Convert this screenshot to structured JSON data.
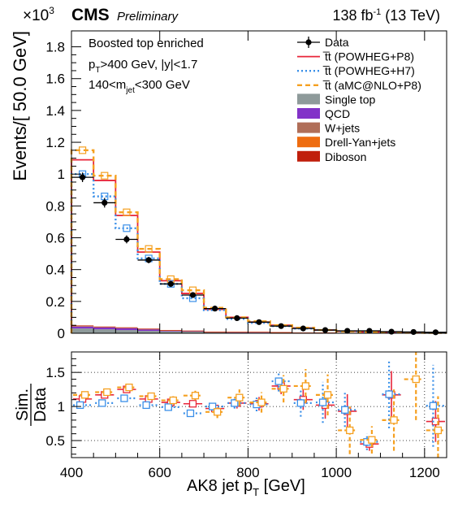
{
  "header": {
    "experiment": "CMS",
    "status": "Preliminary",
    "lumi_prefix": "138 fb",
    "lumi_exp": "-1",
    "lumi_suffix": " (13 TeV)",
    "multiplier_base": "×10",
    "multiplier_exp": "3"
  },
  "annotations": {
    "line1": "Boosted top enriched",
    "line2_a": "p",
    "line2_sub": "T",
    "line2_b": ">400 GeV, |y|<1.7",
    "line3_a": "140<m",
    "line3_sub": "jet",
    "line3_b": "<300 GeV"
  },
  "axes": {
    "x_label_main": "AK8 jet p",
    "x_label_sub": "T",
    "x_label_unit": " [GeV]",
    "y_label_top": "Events/[ 50.0 GeV]",
    "y_label_bottom_num": "Sim.",
    "y_label_bottom_den": "Data"
  },
  "legend": [
    {
      "label": "Data",
      "kind": "data",
      "color": "#000000"
    },
    {
      "label": "t̅t (POWHEG+P8)",
      "kind": "line",
      "color": "#e8263a"
    },
    {
      "label": "t̅t (POWHEG+H7)",
      "kind": "dotted",
      "color": "#3a8fe8"
    },
    {
      "label": "t̅t (aMC@NLO+P8)",
      "kind": "dashed",
      "color": "#f5a020"
    },
    {
      "label": "Single top",
      "kind": "fill",
      "color": "#8e9a9a"
    },
    {
      "label": "QCD",
      "kind": "fill",
      "color": "#8232c8"
    },
    {
      "label": "W+jets",
      "kind": "fill",
      "color": "#b06e58"
    },
    {
      "label": "Drell-Yan+jets",
      "kind": "fill",
      "color": "#ee6c10"
    },
    {
      "label": "Diboson",
      "kind": "fill",
      "color": "#c01f0c"
    }
  ],
  "chart_data": {
    "type": "bar",
    "x_edges": [
      400,
      450,
      500,
      550,
      600,
      650,
      700,
      750,
      800,
      850,
      900,
      950,
      1000,
      1050,
      1100,
      1150,
      1200,
      1250
    ],
    "xlim": [
      400,
      1250
    ],
    "x_ticks": [
      400,
      600,
      800,
      1000,
      1200
    ],
    "main": {
      "ylim": [
        0,
        1.9
      ],
      "y_ticks": [
        0,
        0.2,
        0.4,
        0.6,
        0.8,
        1,
        1.2,
        1.4,
        1.6,
        1.8
      ],
      "y_scale_note": "×10^3",
      "data": {
        "name": "Data",
        "values": [
          0.98,
          0.82,
          0.59,
          0.46,
          0.31,
          0.24,
          0.155,
          0.095,
          0.07,
          0.045,
          0.03,
          0.02,
          0.015,
          0.015,
          0.01,
          0.008,
          0.006
        ],
        "errors": [
          0.03,
          0.03,
          0.025,
          0.02,
          0.018,
          0.015,
          0.012,
          0.01,
          0.008,
          0.007,
          0.006,
          0.005,
          0.004,
          0.004,
          0.003,
          0.003,
          0.003
        ]
      },
      "series": [
        {
          "name": "t̅t (POWHEG+P8)",
          "values": [
            1.09,
            0.96,
            0.74,
            0.51,
            0.33,
            0.25,
            0.15,
            0.1,
            0.07,
            0.05,
            0.033,
            0.02,
            0.013,
            0.008,
            0.005,
            0.004,
            0.003
          ]
        },
        {
          "name": "t̅t (POWHEG+H7)",
          "values": [
            1.0,
            0.86,
            0.66,
            0.47,
            0.31,
            0.22,
            0.145,
            0.09,
            0.065,
            0.045,
            0.03,
            0.02,
            0.012,
            0.008,
            0.005,
            0.004,
            0.003
          ]
        },
        {
          "name": "t̅t (aMC@NLO+P8)",
          "values": [
            1.15,
            0.99,
            0.76,
            0.53,
            0.34,
            0.27,
            0.16,
            0.1,
            0.075,
            0.05,
            0.035,
            0.02,
            0.012,
            0.007,
            0.004,
            0.003,
            0.002
          ]
        }
      ],
      "backgrounds": [
        {
          "name": "Single top",
          "values": [
            0.03,
            0.025,
            0.02,
            0.015,
            0.012,
            0.01,
            0.006,
            0.005,
            0.004,
            0.003,
            0.002,
            0.002,
            0.001,
            0.001,
            0.001,
            0.0005,
            0.0005
          ]
        },
        {
          "name": "QCD",
          "values": [
            0.012,
            0.012,
            0.012,
            0.01,
            0.004,
            0.003,
            0.002,
            0.002,
            0.003,
            0.002,
            0.001,
            0.001,
            0.001,
            0.0005,
            0.0005,
            0.0003,
            0.0003
          ]
        },
        {
          "name": "W+jets",
          "values": [
            0.004,
            0.003,
            0.003,
            0.002,
            0.002,
            0.002,
            0.001,
            0.001,
            0.001,
            0.001,
            0.0005,
            0.0005,
            0.0005,
            0.0003,
            0.0003,
            0.0002,
            0.0002
          ]
        },
        {
          "name": "Drell-Yan+jets",
          "values": [
            0.002,
            0.001,
            0.001,
            0.001,
            0.001,
            0.001,
            0.0005,
            0.0005,
            0.0005,
            0.0005,
            0.0003,
            0.0003,
            0.0002,
            0.0002,
            0.0002,
            0.0001,
            0.0001
          ]
        },
        {
          "name": "Diboson",
          "values": [
            0.001,
            0.001,
            0.001,
            0.001,
            0.0005,
            0.0005,
            0.0003,
            0.0003,
            0.0003,
            0.0002,
            0.0002,
            0.0001,
            0.0001,
            0.0001,
            0.0001,
            0.0001,
            0.0001
          ]
        }
      ]
    },
    "ratio": {
      "ylim": [
        0.25,
        1.8
      ],
      "y_ticks": [
        0.5,
        1,
        1.5
      ],
      "gridlines": [
        0.5,
        1,
        1.5
      ],
      "series": [
        {
          "name": "t̅t (POWHEG+P8)",
          "values": [
            1.11,
            1.17,
            1.25,
            1.11,
            1.06,
            1.04,
            0.97,
            1.05,
            1.04,
            1.3,
            1.1,
            1.02,
            0.93,
            0.45,
            1.17,
            null,
            0.78
          ],
          "errors": [
            0.02,
            0.02,
            0.03,
            0.03,
            0.04,
            0.05,
            0.06,
            0.08,
            0.1,
            0.12,
            0.15,
            0.2,
            0.25,
            0.1,
            0.35,
            null,
            0.3
          ]
        },
        {
          "name": "t̅t (POWHEG+H7)",
          "values": [
            1.02,
            1.05,
            1.12,
            1.02,
            0.99,
            0.9,
            1.0,
            1.05,
            1.03,
            1.37,
            1.05,
            1.06,
            0.95,
            0.48,
            1.18,
            null,
            1.01
          ],
          "errors": [
            0.02,
            0.02,
            0.03,
            0.03,
            0.04,
            0.05,
            0.06,
            0.08,
            0.1,
            0.15,
            0.2,
            0.3,
            0.25,
            0.12,
            0.5,
            null,
            0.6
          ]
        },
        {
          "name": "t̅t (aMC@NLO+P8)",
          "values": [
            1.17,
            1.21,
            1.28,
            1.15,
            1.09,
            1.16,
            0.92,
            1.13,
            1.06,
            1.26,
            1.3,
            1.17,
            0.65,
            0.51,
            0.8,
            1.4,
            0.65
          ],
          "errors": [
            0.03,
            0.03,
            0.04,
            0.04,
            0.06,
            0.07,
            0.09,
            0.12,
            0.15,
            0.2,
            0.25,
            0.3,
            0.35,
            0.2,
            0.45,
            0.6,
            0.5
          ]
        }
      ]
    }
  }
}
